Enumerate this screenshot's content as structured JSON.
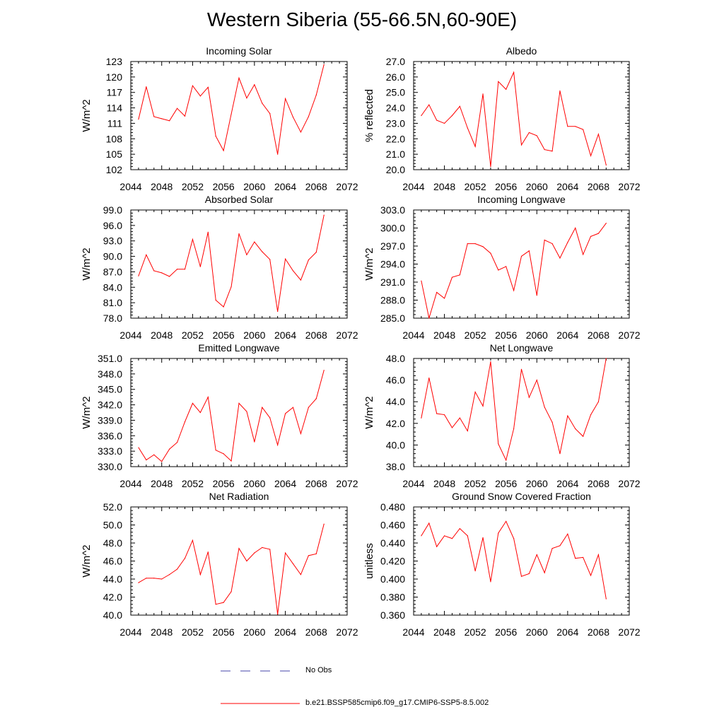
{
  "title": "Western Siberia (55-66.5N,60-90E)",
  "colors": {
    "model": "#ff0000",
    "obs": "#4444aa"
  },
  "legend": {
    "obs_label": "No Obs",
    "model_label": "b.e21.BSSP585cmip6.f09_g17.CMIP6-SSP5-8.5.002"
  },
  "chart_data": [
    {
      "type": "line",
      "title": "Incoming Solar",
      "ylabel": "W/m^2",
      "xlabel": "",
      "xlim": [
        2044,
        2072
      ],
      "ylim": [
        102,
        123
      ],
      "xticks": [
        "2044",
        "2048",
        "2052",
        "2056",
        "2060",
        "2064",
        "2068",
        "2072"
      ],
      "yticks": [
        "102",
        "105",
        "108",
        "111",
        "114",
        "117",
        "120",
        "123"
      ],
      "x": [
        2045,
        2046,
        2047,
        2048,
        2049,
        2050,
        2051,
        2052,
        2053,
        2054,
        2055,
        2056,
        2057,
        2058,
        2059,
        2060,
        2061,
        2062,
        2063,
        2064,
        2065,
        2066,
        2067,
        2068,
        2069
      ],
      "series": [
        {
          "values": [
            111.8,
            118.1,
            112.3,
            111.9,
            111.5,
            113.9,
            112.4,
            118.3,
            116.3,
            118.0,
            108.5,
            105.7,
            112.8,
            119.8,
            115.9,
            118.5,
            114.9,
            112.9,
            105.0,
            115.8,
            112.2,
            109.3,
            112.3,
            116.5,
            122.4
          ]
        }
      ]
    },
    {
      "type": "line",
      "title": "Albedo",
      "ylabel": "% reflected",
      "xlabel": "",
      "xlim": [
        2044,
        2072
      ],
      "ylim": [
        20.0,
        27.0
      ],
      "xticks": [
        "2044",
        "2048",
        "2052",
        "2056",
        "2060",
        "2064",
        "2068",
        "2072"
      ],
      "yticks": [
        "20.0",
        "21.0",
        "22.0",
        "23.0",
        "24.0",
        "25.0",
        "26.0",
        "27.0"
      ],
      "x": [
        2045,
        2046,
        2047,
        2048,
        2049,
        2050,
        2051,
        2052,
        2053,
        2054,
        2055,
        2056,
        2057,
        2058,
        2059,
        2060,
        2061,
        2062,
        2063,
        2064,
        2065,
        2066,
        2067,
        2068,
        2069
      ],
      "series": [
        {
          "values": [
            23.5,
            24.2,
            23.2,
            23.0,
            23.5,
            24.1,
            22.7,
            21.5,
            24.9,
            20.2,
            25.7,
            25.2,
            26.3,
            21.6,
            22.4,
            22.2,
            21.3,
            21.2,
            25.1,
            22.8,
            22.8,
            22.6,
            20.9,
            22.3,
            20.3
          ]
        }
      ]
    },
    {
      "type": "line",
      "title": "Absorbed Solar",
      "ylabel": "W/m^2",
      "xlabel": "",
      "xlim": [
        2044,
        2072
      ],
      "ylim": [
        78.0,
        99.0
      ],
      "xticks": [
        "2044",
        "2048",
        "2052",
        "2056",
        "2060",
        "2064",
        "2068",
        "2072"
      ],
      "yticks": [
        "78.0",
        "81.0",
        "84.0",
        "87.0",
        "90.0",
        "93.0",
        "96.0",
        "99.0"
      ],
      "x": [
        2045,
        2046,
        2047,
        2048,
        2049,
        2050,
        2051,
        2052,
        2053,
        2054,
        2055,
        2056,
        2057,
        2058,
        2059,
        2060,
        2061,
        2062,
        2063,
        2064,
        2065,
        2066,
        2067,
        2068,
        2069
      ],
      "series": [
        {
          "values": [
            86.2,
            90.3,
            87.2,
            86.8,
            86.1,
            87.5,
            87.5,
            93.3,
            88.0,
            94.7,
            81.5,
            80.2,
            84.1,
            94.4,
            90.3,
            92.8,
            90.9,
            89.4,
            79.3,
            89.5,
            87.2,
            85.4,
            89.3,
            90.8,
            98.0
          ]
        }
      ]
    },
    {
      "type": "line",
      "title": "Incoming Longwave",
      "ylabel": "W/m^2",
      "xlabel": "",
      "xlim": [
        2044,
        2072
      ],
      "ylim": [
        285.0,
        303.0
      ],
      "xticks": [
        "2044",
        "2048",
        "2052",
        "2056",
        "2060",
        "2064",
        "2068",
        "2072"
      ],
      "yticks": [
        "285.0",
        "288.0",
        "291.0",
        "294.0",
        "297.0",
        "300.0",
        "303.0"
      ],
      "x": [
        2045,
        2046,
        2047,
        2048,
        2049,
        2050,
        2051,
        2052,
        2053,
        2054,
        2055,
        2056,
        2057,
        2058,
        2059,
        2060,
        2061,
        2062,
        2063,
        2064,
        2065,
        2066,
        2067,
        2068,
        2069
      ],
      "series": [
        {
          "values": [
            291.2,
            285.0,
            289.3,
            288.3,
            291.8,
            292.2,
            297.4,
            297.4,
            296.9,
            295.8,
            293.0,
            293.6,
            289.6,
            295.3,
            296.2,
            288.8,
            298.0,
            297.4,
            295.0,
            297.6,
            300.0,
            295.6,
            298.6,
            299.1,
            300.8
          ]
        }
      ]
    },
    {
      "type": "line",
      "title": "Emitted Longwave",
      "ylabel": "W/m^2",
      "xlabel": "",
      "xlim": [
        2044,
        2072
      ],
      "ylim": [
        330.0,
        351.0
      ],
      "xticks": [
        "2044",
        "2048",
        "2052",
        "2056",
        "2060",
        "2064",
        "2068",
        "2072"
      ],
      "yticks": [
        "330.0",
        "333.0",
        "336.0",
        "339.0",
        "342.0",
        "345.0",
        "348.0",
        "351.0"
      ],
      "x": [
        2045,
        2046,
        2047,
        2048,
        2049,
        2050,
        2051,
        2052,
        2053,
        2054,
        2055,
        2056,
        2057,
        2058,
        2059,
        2060,
        2061,
        2062,
        2063,
        2064,
        2065,
        2066,
        2067,
        2068,
        2069
      ],
      "series": [
        {
          "values": [
            333.7,
            331.3,
            332.3,
            331.0,
            333.4,
            334.7,
            338.7,
            342.3,
            340.5,
            343.5,
            333.2,
            332.5,
            331.1,
            342.3,
            340.7,
            334.8,
            341.5,
            339.5,
            334.2,
            340.3,
            341.5,
            336.4,
            341.5,
            343.2,
            348.7
          ]
        }
      ]
    },
    {
      "type": "line",
      "title": "Net Longwave",
      "ylabel": "W/m^2",
      "xlabel": "",
      "xlim": [
        2044,
        2072
      ],
      "ylim": [
        38.0,
        48.0
      ],
      "xticks": [
        "2044",
        "2048",
        "2052",
        "2056",
        "2060",
        "2064",
        "2068",
        "2072"
      ],
      "yticks": [
        "38.0",
        "40.0",
        "42.0",
        "44.0",
        "46.0",
        "48.0"
      ],
      "x": [
        2045,
        2046,
        2047,
        2048,
        2049,
        2050,
        2051,
        2052,
        2053,
        2054,
        2055,
        2056,
        2057,
        2058,
        2059,
        2060,
        2061,
        2062,
        2063,
        2064,
        2065,
        2066,
        2067,
        2068,
        2069
      ],
      "series": [
        {
          "values": [
            42.5,
            46.2,
            42.9,
            42.8,
            41.6,
            42.5,
            41.3,
            44.9,
            43.6,
            47.7,
            40.1,
            38.6,
            41.5,
            47.0,
            44.4,
            46.0,
            43.5,
            42.1,
            39.2,
            42.7,
            41.5,
            40.8,
            42.8,
            44.0,
            48.0
          ]
        }
      ]
    },
    {
      "type": "line",
      "title": "Net Radiation",
      "ylabel": "W/m^2",
      "xlabel": "",
      "xlim": [
        2044,
        2072
      ],
      "ylim": [
        40.0,
        52.0
      ],
      "xticks": [
        "2044",
        "2048",
        "2052",
        "2056",
        "2060",
        "2064",
        "2068",
        "2072"
      ],
      "yticks": [
        "40.0",
        "42.0",
        "44.0",
        "46.0",
        "48.0",
        "50.0",
        "52.0"
      ],
      "x": [
        2045,
        2046,
        2047,
        2048,
        2049,
        2050,
        2051,
        2052,
        2053,
        2054,
        2055,
        2056,
        2057,
        2058,
        2059,
        2060,
        2061,
        2062,
        2063,
        2064,
        2065,
        2066,
        2067,
        2068,
        2069
      ],
      "series": [
        {
          "values": [
            43.6,
            44.1,
            44.1,
            44.0,
            44.5,
            45.1,
            46.3,
            48.3,
            44.5,
            47.0,
            41.2,
            41.4,
            42.6,
            47.4,
            46.0,
            46.9,
            47.5,
            47.3,
            40.1,
            46.9,
            45.7,
            44.5,
            46.6,
            46.8,
            50.1
          ]
        }
      ]
    },
    {
      "type": "line",
      "title": "Ground Snow Covered Fraction",
      "ylabel": "unitless",
      "xlabel": "",
      "xlim": [
        2044,
        2072
      ],
      "ylim": [
        0.36,
        0.48
      ],
      "xticks": [
        "2044",
        "2048",
        "2052",
        "2056",
        "2060",
        "2064",
        "2068",
        "2072"
      ],
      "yticks": [
        "0.360",
        "0.380",
        "0.400",
        "0.420",
        "0.440",
        "0.460",
        "0.480"
      ],
      "x": [
        2045,
        2046,
        2047,
        2048,
        2049,
        2050,
        2051,
        2052,
        2053,
        2054,
        2055,
        2056,
        2057,
        2058,
        2059,
        2060,
        2061,
        2062,
        2063,
        2064,
        2065,
        2066,
        2067,
        2068,
        2069
      ],
      "series": [
        {
          "values": [
            0.448,
            0.462,
            0.436,
            0.448,
            0.445,
            0.456,
            0.448,
            0.409,
            0.446,
            0.397,
            0.451,
            0.464,
            0.445,
            0.403,
            0.406,
            0.427,
            0.407,
            0.434,
            0.437,
            0.45,
            0.423,
            0.424,
            0.404,
            0.427,
            0.378
          ]
        }
      ]
    }
  ]
}
